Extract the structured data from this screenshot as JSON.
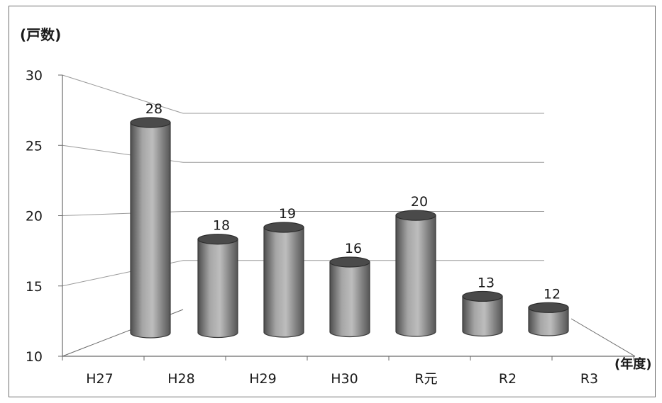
{
  "chart_data": {
    "type": "bar",
    "style": "3d-cylinder",
    "unit_label": "(戸数)",
    "x_unit_label": "(年度)",
    "categories": [
      "H27",
      "H28",
      "H29",
      "H30",
      "R元",
      "R2",
      "R3"
    ],
    "series": [
      {
        "values": [
          28,
          18,
          19,
          16,
          20,
          13,
          12
        ]
      }
    ],
    "yticks": [
      10,
      15,
      20,
      25,
      30
    ],
    "ylim": [
      10,
      30
    ],
    "grid": true,
    "legend": "none",
    "colors": {
      "bar": "#8e8e8e",
      "bar_dark": "#4a4a4a",
      "bar_light": "#c4c4c4",
      "grid": "#9a9a9a",
      "axis": "#6a6a6a"
    }
  }
}
